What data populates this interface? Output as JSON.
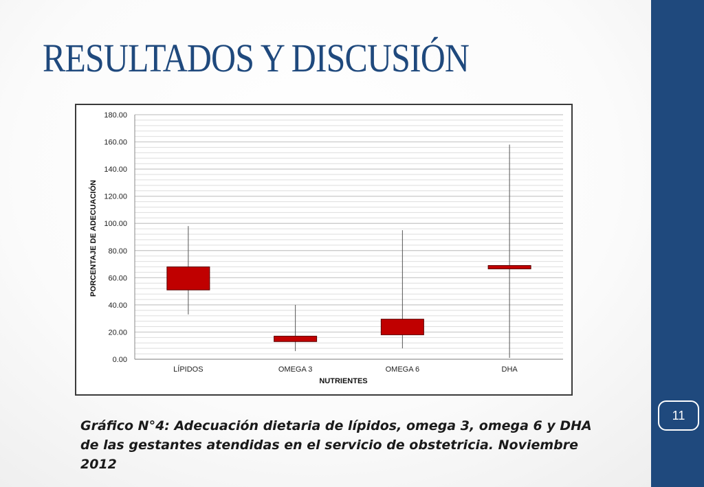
{
  "slide": {
    "title": "RESULTADOS Y DISCUSIÓN",
    "page_number": "11",
    "caption": "Gráfico N°4: Adecuación dietaria de lípidos, omega 3, omega 6 y DHA de las gestantes atendidas en el servicio de obstetricia. Noviembre 2012"
  },
  "colors": {
    "title": "#1f497d",
    "side_band": "#1f497d",
    "box_fill": "#c00000",
    "box_stroke": "#5a0000",
    "whisker": "#555555",
    "grid": "#c8c8c8"
  },
  "chart_data": {
    "type": "box",
    "title": "",
    "xlabel": "NUTRIENTES",
    "ylabel": "PORCENTAJE DE ADECUACIÓN",
    "ylim": [
      0,
      180
    ],
    "ytick_step": 20,
    "minor_grid_step": 4,
    "y_tick_labels": [
      "0.00",
      "20.00",
      "40.00",
      "60.00",
      "80.00",
      "100.00",
      "120.00",
      "140.00",
      "160.00",
      "180.00"
    ],
    "grid": true,
    "legend": false,
    "categories": [
      "LÍPIDOS",
      "OMEGA 3",
      "OMEGA 6",
      "DHA"
    ],
    "boxes": [
      {
        "category": "LÍPIDOS",
        "min": 33,
        "q1": 51,
        "q3": 68,
        "max": 98
      },
      {
        "category": "OMEGA 3",
        "min": 6,
        "q1": 13,
        "q3": 17,
        "max": 40
      },
      {
        "category": "OMEGA 6",
        "min": 8,
        "q1": 18,
        "q3": 29.5,
        "max": 95
      },
      {
        "category": "DHA",
        "min": 1,
        "q1": 66.5,
        "q3": 69,
        "max": 158
      }
    ]
  }
}
